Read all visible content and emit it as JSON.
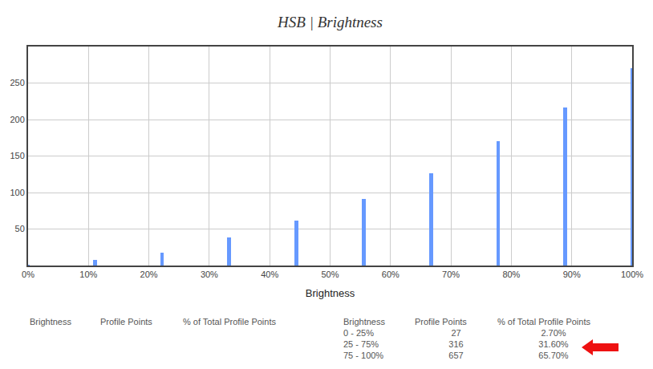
{
  "chart_data": {
    "type": "bar",
    "title": "HSB | Brightness",
    "xlabel": "Brightness",
    "x": [
      0,
      11.1,
      22.2,
      33.3,
      44.4,
      55.6,
      66.7,
      77.8,
      88.9,
      100
    ],
    "values": [
      1,
      8,
      18,
      38,
      61,
      91,
      126,
      170,
      217,
      270
    ],
    "color": "#6699ff",
    "xlim": [
      0,
      100
    ],
    "xticks": [
      {
        "value": 0,
        "label": "0%"
      },
      {
        "value": 10,
        "label": "10%"
      },
      {
        "value": 20,
        "label": "20%"
      },
      {
        "value": 30,
        "label": "30%"
      },
      {
        "value": 40,
        "label": "40%"
      },
      {
        "value": 50,
        "label": "50%"
      },
      {
        "value": 60,
        "label": "60%"
      },
      {
        "value": 70,
        "label": "70%"
      },
      {
        "value": 80,
        "label": "80%"
      },
      {
        "value": 90,
        "label": "90%"
      },
      {
        "value": 100,
        "label": "100%"
      }
    ],
    "ylim": [
      0,
      300
    ],
    "yticks": [
      50,
      100,
      150,
      200,
      250
    ],
    "grid": true
  },
  "tables": [
    {
      "columns": [
        "Brightness",
        "Profile Points",
        "% of Total Profile Points"
      ],
      "rows": []
    },
    {
      "columns": [
        "Brightness",
        "Profile Points",
        "% of Total Profile Points"
      ],
      "rows": [
        [
          "0 - 25%",
          27,
          "2.70%"
        ],
        [
          "25 - 75%",
          316,
          "31.60%"
        ],
        [
          "75 - 100%",
          657,
          "65.70%"
        ]
      ]
    }
  ]
}
